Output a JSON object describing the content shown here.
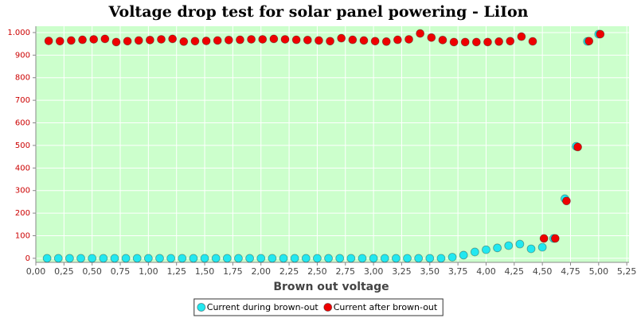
{
  "chart_data": {
    "type": "scatter",
    "title": "Voltage drop test for solar panel powering -  LiIon",
    "x_label": "Brown out voltage",
    "x": [
      0.1,
      0.2,
      0.3,
      0.4,
      0.5,
      0.6,
      0.7,
      0.8,
      0.9,
      1.0,
      1.1,
      1.2,
      1.3,
      1.4,
      1.5,
      1.6,
      1.7,
      1.8,
      1.9,
      2.0,
      2.1,
      2.2,
      2.3,
      2.4,
      2.5,
      2.6,
      2.7,
      2.8,
      2.9,
      3.0,
      3.1,
      3.2,
      3.3,
      3.4,
      3.5,
      3.6,
      3.7,
      3.8,
      3.9,
      4.0,
      4.1,
      4.2,
      4.3,
      4.4,
      4.5,
      4.6,
      4.7,
      4.8,
      4.9,
      5.0
    ],
    "series": [
      {
        "name": "Current during brown-out",
        "color": "#22e8f0",
        "values": [
          0,
          0,
          0,
          0,
          0,
          0,
          0,
          0,
          0,
          0,
          0,
          0,
          0,
          0,
          0,
          0,
          0,
          0,
          0,
          0,
          0,
          0,
          0,
          0,
          0,
          0,
          0,
          0,
          0,
          0,
          0,
          0,
          0,
          0,
          0,
          0,
          5,
          14,
          28,
          38,
          46,
          56,
          63,
          42,
          49,
          88,
          264,
          496,
          961,
          993
        ]
      },
      {
        "name": "Current after brown-out",
        "color": "#ee0000",
        "values": [
          963,
          962,
          965,
          968,
          970,
          972,
          958,
          962,
          965,
          967,
          970,
          972,
          960,
          962,
          963,
          965,
          967,
          968,
          970,
          970,
          972,
          970,
          968,
          967,
          965,
          962,
          975,
          968,
          965,
          962,
          960,
          968,
          970,
          996,
          978,
          967,
          958,
          958,
          958,
          958,
          960,
          962,
          982,
          961,
          88,
          88,
          254,
          493,
          962,
          993
        ]
      }
    ],
    "xlim": [
      0,
      5.27
    ],
    "ylim": [
      -18,
      1028
    ],
    "xticks": [
      {
        "value": 0,
        "label": "0,00"
      },
      {
        "value": 0.25,
        "label": "0,25"
      },
      {
        "value": 0.5,
        "label": "0,50"
      },
      {
        "value": 0.75,
        "label": "0,75"
      },
      {
        "value": 1,
        "label": "1,00"
      },
      {
        "value": 1.25,
        "label": "1,25"
      },
      {
        "value": 1.5,
        "label": "1,50"
      },
      {
        "value": 1.75,
        "label": "1,75"
      },
      {
        "value": 2,
        "label": "2,00"
      },
      {
        "value": 2.25,
        "label": "2,25"
      },
      {
        "value": 2.5,
        "label": "2,50"
      },
      {
        "value": 2.75,
        "label": "2,75"
      },
      {
        "value": 3,
        "label": "3,00"
      },
      {
        "value": 3.25,
        "label": "3,25"
      },
      {
        "value": 3.5,
        "label": "3,50"
      },
      {
        "value": 3.75,
        "label": "3,75"
      },
      {
        "value": 4,
        "label": "4,00"
      },
      {
        "value": 4.25,
        "label": "4,25"
      },
      {
        "value": 4.5,
        "label": "4,50"
      },
      {
        "value": 4.75,
        "label": "4,75"
      },
      {
        "value": 5,
        "label": "5,00"
      },
      {
        "value": 5.25,
        "label": "5,25"
      }
    ],
    "yticks": [
      0,
      100,
      200,
      300,
      400,
      500,
      600,
      700,
      800,
      900,
      {
        "value": 1000,
        "label": "1.000"
      }
    ],
    "grid": true,
    "legend": "bottom"
  }
}
